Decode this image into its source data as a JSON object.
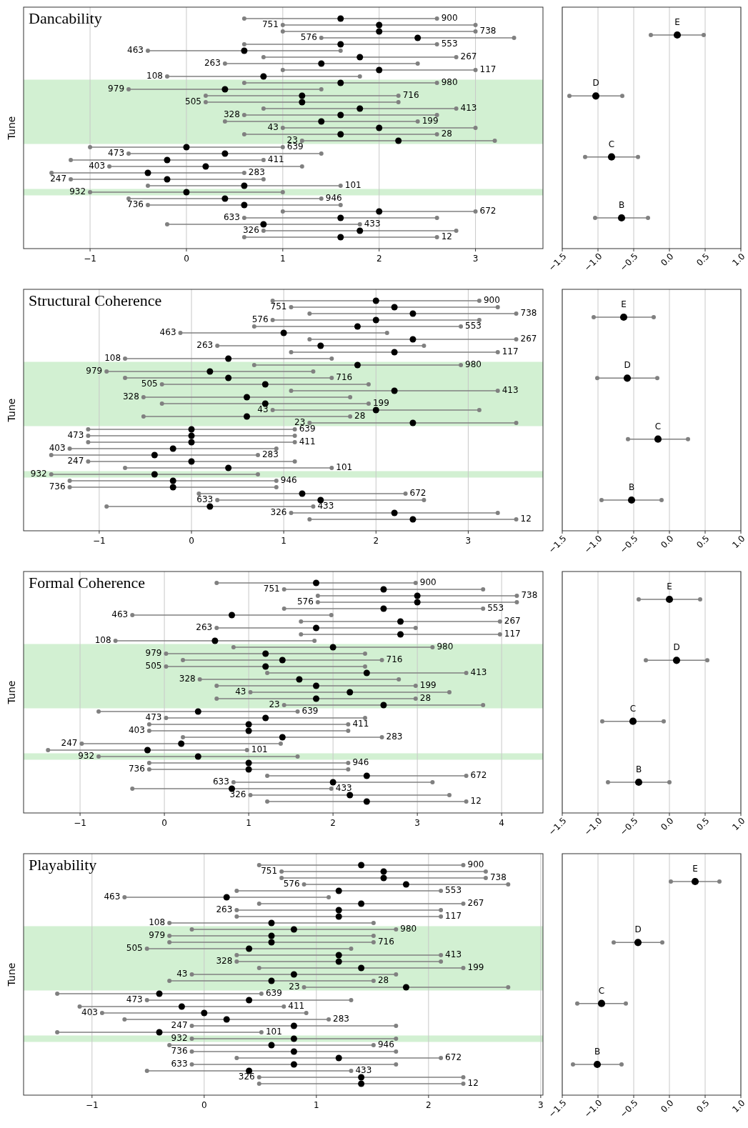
{
  "chart_data": [
    {
      "type": "scatter",
      "orientation": "horizontal",
      "title": "Dancability",
      "ylabel": "Tune",
      "color": "#000000",
      "marker": "circle",
      "grid": "x",
      "tick_labels": "x",
      "categories": [
        "900",
        "751",
        "738",
        "576",
        "553",
        "463",
        "267",
        "263",
        "117",
        "108",
        "980",
        "979",
        "716",
        "505",
        "413",
        "328",
        "199",
        "43",
        "28",
        "23",
        "639",
        "473",
        "411",
        "403",
        "283",
        "247",
        "101",
        "932",
        "946",
        "736",
        "672",
        "633",
        "433",
        "326",
        "12"
      ],
      "values": [
        1.6,
        2.0,
        2.0,
        2.4,
        1.6,
        0.6,
        1.8,
        1.4,
        2.0,
        0.8,
        1.6,
        0.4,
        1.2,
        1.2,
        1.8,
        1.6,
        1.4,
        2.0,
        1.6,
        2.2,
        0.0,
        0.4,
        -0.2,
        0.2,
        -0.4,
        -0.2,
        0.6,
        0.0,
        0.4,
        0.6,
        2.0,
        1.6,
        0.8,
        1.8,
        1.6
      ],
      "errors": [
        1,
        1,
        1,
        1,
        1,
        1,
        1,
        1,
        1,
        1,
        1,
        1,
        1,
        1,
        1,
        1,
        1,
        1,
        1,
        1,
        1,
        1,
        1,
        1,
        1,
        1,
        1,
        1,
        1,
        1,
        1,
        1,
        1,
        1,
        1
      ],
      "xlim": [
        -1.69,
        3.7
      ],
      "xticks": [
        {
          "value": -1,
          "label": "−1"
        },
        0,
        1,
        2,
        3
      ],
      "bands": [
        {
          "axis": "y",
          "from": "980",
          "to": "23",
          "color": "#d2f0d2"
        },
        {
          "axis": "y",
          "from": "932",
          "to": "932",
          "color": "#d2f0d2"
        }
      ]
    },
    {
      "type": "scatter",
      "orientation": "horizontal",
      "color": "#000000",
      "marker": "circle",
      "grid": "x",
      "tick_labels": "x",
      "categories": [
        null,
        null,
        null,
        null
      ],
      "annotations": [
        "E",
        "D",
        "C",
        "B"
      ],
      "values": [
        0.11,
        -1.03,
        -0.81,
        -0.67
      ],
      "errors": [
        0.37,
        0.37,
        0.37,
        0.37
      ],
      "xlim": [
        -1.5,
        1.0
      ],
      "xticks": [
        {
          "value": -1.5,
          "label": "−1.5"
        },
        {
          "value": -1,
          "label": "−1.0"
        },
        {
          "value": -0.5,
          "label": "−0.5"
        },
        {
          "value": 0,
          "label": "0.0"
        },
        {
          "value": 0.5,
          "label": "0.5"
        },
        {
          "value": 1,
          "label": "1.0"
        }
      ]
    },
    {
      "type": "scatter",
      "orientation": "horizontal",
      "title": "Structural Coherence",
      "ylabel": "Tune",
      "color": "#000000",
      "marker": "circle",
      "grid": "x",
      "tick_labels": "x",
      "categories": [
        "900",
        "751",
        "738",
        "576",
        "553",
        "463",
        "267",
        "263",
        "117",
        "108",
        "980",
        "979",
        "716",
        "505",
        "413",
        "328",
        "199",
        "43",
        "28",
        "23",
        "639",
        "473",
        "411",
        "403",
        "283",
        "247",
        "101",
        "932",
        "946",
        "736",
        "672",
        "633",
        "433",
        "326",
        "12"
      ],
      "values": [
        2.0,
        2.2,
        2.4,
        2.0,
        1.8,
        1.0,
        2.4,
        1.4,
        2.2,
        0.4,
        1.8,
        0.2,
        0.4,
        0.8,
        2.2,
        0.6,
        0.8,
        2.0,
        0.6,
        2.4,
        0.0,
        0.0,
        0.0,
        -0.2,
        -0.4,
        0.0,
        0.4,
        -0.4,
        -0.2,
        -0.2,
        1.2,
        1.4,
        0.2,
        2.2,
        2.4
      ],
      "errors": [
        1.12,
        1.12,
        1.12,
        1.12,
        1.12,
        1.12,
        1.12,
        1.12,
        1.12,
        1.12,
        1.12,
        1.12,
        1.12,
        1.12,
        1.12,
        1.12,
        1.12,
        1.12,
        1.12,
        1.12,
        1.12,
        1.12,
        1.12,
        1.12,
        1.12,
        1.12,
        1.12,
        1.12,
        1.12,
        1.12,
        1.12,
        1.12,
        1.12,
        1.12,
        1.12
      ],
      "xlim": [
        -1.82,
        3.81
      ],
      "xticks": [
        {
          "value": -1,
          "label": "−1"
        },
        0,
        1,
        2,
        3
      ],
      "bands": [
        {
          "axis": "y",
          "from": "980",
          "to": "23",
          "color": "#d2f0d2"
        },
        {
          "axis": "y",
          "from": "932",
          "to": "932",
          "color": "#d2f0d2"
        }
      ]
    },
    {
      "type": "scatter",
      "orientation": "horizontal",
      "color": "#000000",
      "marker": "circle",
      "grid": "x",
      "tick_labels": "x",
      "categories": [
        null,
        null,
        null,
        null
      ],
      "annotations": [
        "E",
        "D",
        "C",
        "B"
      ],
      "values": [
        -0.64,
        -0.59,
        -0.16,
        -0.53
      ],
      "errors": [
        0.42,
        0.42,
        0.42,
        0.42
      ],
      "xlim": [
        -1.5,
        1.0
      ],
      "xticks": [
        {
          "value": -1.5,
          "label": "−1.5"
        },
        {
          "value": -1,
          "label": "−1.0"
        },
        {
          "value": -0.5,
          "label": "−0.5"
        },
        {
          "value": 0,
          "label": "0.0"
        },
        {
          "value": 0.5,
          "label": "0.5"
        },
        {
          "value": 1,
          "label": "1.0"
        }
      ]
    },
    {
      "type": "scatter",
      "orientation": "horizontal",
      "title": "Formal Coherence",
      "ylabel": "Tune",
      "color": "#000000",
      "marker": "circle",
      "grid": "x",
      "tick_labels": "x",
      "categories": [
        "900",
        "751",
        "738",
        "576",
        "553",
        "463",
        "267",
        "263",
        "117",
        "108",
        "980",
        "979",
        "716",
        "505",
        "413",
        "328",
        "199",
        "43",
        "28",
        "23",
        "639",
        "473",
        "411",
        "403",
        "283",
        "247",
        "101",
        "932",
        "946",
        "736",
        "672",
        "633",
        "433",
        "326",
        "12"
      ],
      "values": [
        1.8,
        2.6,
        3.0,
        3.0,
        2.6,
        0.8,
        2.8,
        1.8,
        2.8,
        0.6,
        2.0,
        1.2,
        1.4,
        1.2,
        2.4,
        1.6,
        1.8,
        2.2,
        1.8,
        2.6,
        0.4,
        1.2,
        1.0,
        1.0,
        1.4,
        0.2,
        -0.2,
        0.4,
        1.0,
        1.0,
        2.4,
        2.0,
        0.8,
        2.2,
        2.4
      ],
      "errors": [
        1.18,
        1.18,
        1.18,
        1.18,
        1.18,
        1.18,
        1.18,
        1.18,
        1.18,
        1.18,
        1.18,
        1.18,
        1.18,
        1.18,
        1.18,
        1.18,
        1.18,
        1.18,
        1.18,
        1.18,
        1.18,
        1.18,
        1.18,
        1.18,
        1.18,
        1.18,
        1.18,
        1.18,
        1.18,
        1.18,
        1.18,
        1.18,
        1.18,
        1.18,
        1.18
      ],
      "xlim": [
        -1.67,
        4.49
      ],
      "xticks": [
        {
          "value": -1,
          "label": "−1"
        },
        0,
        1,
        2,
        3,
        4
      ],
      "bands": [
        {
          "axis": "y",
          "from": "980",
          "to": "23",
          "color": "#d2f0d2"
        },
        {
          "axis": "y",
          "from": "932",
          "to": "932",
          "color": "#d2f0d2"
        }
      ]
    },
    {
      "type": "scatter",
      "orientation": "horizontal",
      "color": "#000000",
      "marker": "circle",
      "grid": "x",
      "tick_labels": "x",
      "categories": [
        null,
        null,
        null,
        null
      ],
      "annotations": [
        "E",
        "D",
        "C",
        "B"
      ],
      "values": [
        0.0,
        0.1,
        -0.51,
        -0.43
      ],
      "errors": [
        0.43,
        0.43,
        0.43,
        0.43
      ],
      "xlim": [
        -1.5,
        1.0
      ],
      "xticks": [
        {
          "value": -1.5,
          "label": "−1.5"
        },
        {
          "value": -1,
          "label": "−1.0"
        },
        {
          "value": -0.5,
          "label": "−0.5"
        },
        {
          "value": 0,
          "label": "0.0"
        },
        {
          "value": 0.5,
          "label": "0.5"
        },
        {
          "value": 1,
          "label": "1.0"
        }
      ]
    },
    {
      "type": "scatter",
      "orientation": "horizontal",
      "title": "Playability",
      "ylabel": "Tune",
      "color": "#000000",
      "marker": "circle",
      "grid": "x",
      "tick_labels": "x",
      "categories": [
        "900",
        "751",
        "738",
        "576",
        "553",
        "463",
        "267",
        "263",
        "117",
        "108",
        "980",
        "979",
        "716",
        "505",
        "413",
        "328",
        "199",
        "43",
        "28",
        "23",
        "639",
        "473",
        "411",
        "403",
        "283",
        "247",
        "101",
        "932",
        "946",
        "736",
        "672",
        "633",
        "433",
        "326",
        "12"
      ],
      "values": [
        1.4,
        1.6,
        1.6,
        1.8,
        1.2,
        0.2,
        1.4,
        1.2,
        1.2,
        0.6,
        0.8,
        0.6,
        0.6,
        0.4,
        1.2,
        1.2,
        1.4,
        0.8,
        0.6,
        1.8,
        -0.4,
        0.4,
        -0.2,
        0.0,
        0.2,
        0.8,
        -0.4,
        0.8,
        0.6,
        0.8,
        1.2,
        0.8,
        0.4,
        1.4,
        1.4
      ],
      "errors": [
        0.91,
        0.91,
        0.91,
        0.91,
        0.91,
        0.91,
        0.91,
        0.91,
        0.91,
        0.91,
        0.91,
        0.91,
        0.91,
        0.91,
        0.91,
        0.91,
        0.91,
        0.91,
        0.91,
        0.91,
        0.91,
        0.91,
        0.91,
        0.91,
        0.91,
        0.91,
        0.91,
        0.91,
        0.91,
        0.91,
        0.91,
        0.91,
        0.91,
        0.91,
        0.91
      ],
      "xlim": [
        -1.61,
        3.02
      ],
      "xticks": [
        {
          "value": -1,
          "label": "−1"
        },
        0,
        1,
        2,
        3
      ],
      "bands": [
        {
          "axis": "y",
          "from": "980",
          "to": "23",
          "color": "#d2f0d2"
        },
        {
          "axis": "y",
          "from": "932",
          "to": "932",
          "color": "#d2f0d2"
        }
      ]
    },
    {
      "type": "scatter",
      "orientation": "horizontal",
      "color": "#000000",
      "marker": "circle",
      "grid": "x",
      "tick_labels": "x",
      "categories": [
        null,
        null,
        null,
        null
      ],
      "annotations": [
        "E",
        "D",
        "C",
        "B"
      ],
      "values": [
        0.36,
        -0.44,
        -0.95,
        -1.01
      ],
      "errors": [
        0.34,
        0.34,
        0.34,
        0.34
      ],
      "xlim": [
        -1.5,
        1.0
      ],
      "xticks": [
        {
          "value": -1.5,
          "label": "−1.5"
        },
        {
          "value": -1,
          "label": "−1.0"
        },
        {
          "value": -0.5,
          "label": "−0.5"
        },
        {
          "value": 0,
          "label": "0.0"
        },
        {
          "value": 0.5,
          "label": "0.5"
        },
        {
          "value": 1,
          "label": "1.0"
        }
      ]
    }
  ]
}
